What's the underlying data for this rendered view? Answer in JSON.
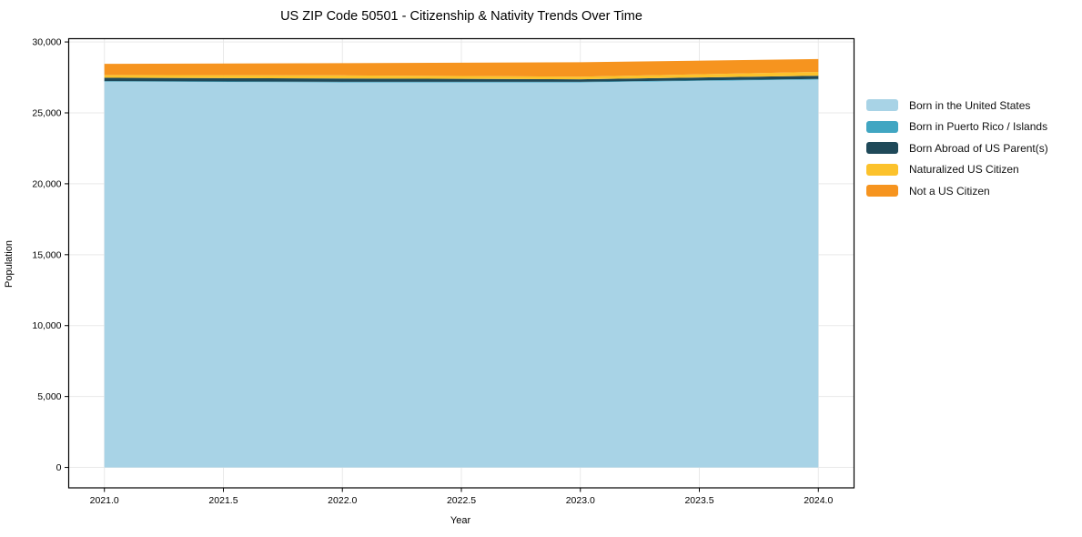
{
  "figure": {
    "title": "US ZIP Code 50501 - Citizenship & Nativity Trends Over Time",
    "xlabel": "Year",
    "ylabel": "Population"
  },
  "chart_data": {
    "type": "area",
    "stacked": true,
    "title": "US ZIP Code 50501 - Citizenship & Nativity Trends Over Time",
    "xlabel": "Year",
    "ylabel": "Population",
    "x": [
      2021,
      2022,
      2023,
      2024
    ],
    "series": [
      {
        "name": "Born in the United States",
        "color": "#a8d3e6",
        "values": [
          27200,
          27150,
          27150,
          27350
        ]
      },
      {
        "name": "Born in Puerto Rico / Islands",
        "color": "#41a6c2",
        "values": [
          40,
          40,
          40,
          40
        ]
      },
      {
        "name": "Born Abroad of US Parent(s)",
        "color": "#1f4959",
        "values": [
          240,
          235,
          175,
          230
        ]
      },
      {
        "name": "Naturalized US Citizen",
        "color": "#fcc22c",
        "values": [
          190,
          220,
          190,
          265
        ]
      },
      {
        "name": "Not a US Citizen",
        "color": "#f6941f",
        "values": [
          790,
          860,
          1010,
          905
        ]
      }
    ],
    "xlim": [
      2020.85,
      2024.15
    ],
    "ylim": [
      -1440,
      30230
    ],
    "x_ticks": {
      "values": [
        2021.0,
        2021.5,
        2022.0,
        2022.5,
        2023.0,
        2023.5,
        2024.0
      ],
      "labels": [
        "2021.0",
        "2021.5",
        "2022.0",
        "2022.5",
        "2023.0",
        "2023.5",
        "2024.0"
      ]
    },
    "y_ticks": {
      "values": [
        0,
        5000,
        10000,
        15000,
        20000,
        25000,
        30000
      ],
      "labels": [
        "0",
        "5,000",
        "10,000",
        "15,000",
        "20,000",
        "25,000",
        "30,000"
      ]
    },
    "grid": true,
    "legend_position": "right outside"
  }
}
